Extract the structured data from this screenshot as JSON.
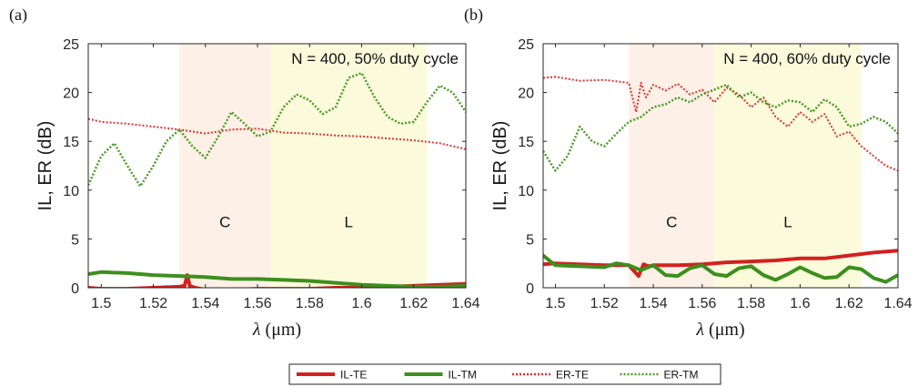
{
  "chart_data": [
    {
      "panel_label": "(a)",
      "type": "line",
      "annotation": "N = 400, 50% duty cycle",
      "xlabel_var": "λ",
      "xlabel_unit": "(μm)",
      "ylabel": "IL, ER (dB)",
      "xlim": [
        1.495,
        1.64
      ],
      "ylim": [
        0,
        25
      ],
      "xticks": [
        1.5,
        1.52,
        1.54,
        1.56,
        1.58,
        1.6,
        1.62,
        1.64
      ],
      "yticks": [
        0,
        5,
        10,
        15,
        20,
        25
      ],
      "xtick_labels": [
        "1.5",
        "1.52",
        "1.54",
        "1.56",
        "1.58",
        "1.6",
        "1.62",
        "1.64"
      ],
      "ytick_labels": [
        "0",
        "5",
        "10",
        "15",
        "20",
        "25"
      ],
      "bands": [
        {
          "label": "C",
          "x_start": 1.53,
          "x_end": 1.565,
          "color": "#fdf0e6"
        },
        {
          "label": "L",
          "x_start": 1.565,
          "x_end": 1.625,
          "color": "#fbfbdc"
        }
      ],
      "series": [
        {
          "name": "IL-TE",
          "x": [
            1.495,
            1.5,
            1.51,
            1.52,
            1.53,
            1.532,
            1.533,
            1.534,
            1.536,
            1.54,
            1.55,
            1.56,
            1.57,
            1.58,
            1.59,
            1.6,
            1.61,
            1.62,
            1.63,
            1.64
          ],
          "y": [
            0.0,
            -0.1,
            -0.1,
            0.0,
            0.1,
            0.2,
            1.3,
            0.2,
            0.0,
            -0.2,
            -0.2,
            -0.1,
            -0.1,
            -0.1,
            0.0,
            0.0,
            0.1,
            0.2,
            0.3,
            0.4
          ]
        },
        {
          "name": "IL-TM",
          "x": [
            1.495,
            1.5,
            1.51,
            1.52,
            1.53,
            1.54,
            1.55,
            1.56,
            1.57,
            1.58,
            1.59,
            1.6,
            1.61,
            1.62,
            1.63,
            1.64
          ],
          "y": [
            1.4,
            1.6,
            1.5,
            1.3,
            1.2,
            1.1,
            0.9,
            0.9,
            0.8,
            0.7,
            0.5,
            0.3,
            0.2,
            0.1,
            0.1,
            0.2
          ]
        },
        {
          "name": "ER-TE",
          "x": [
            1.495,
            1.5,
            1.51,
            1.52,
            1.53,
            1.54,
            1.55,
            1.56,
            1.57,
            1.58,
            1.59,
            1.6,
            1.61,
            1.62,
            1.63,
            1.64
          ],
          "y": [
            17.3,
            17.0,
            16.8,
            16.5,
            16.2,
            15.8,
            16.2,
            16.3,
            15.9,
            15.8,
            15.6,
            15.5,
            15.3,
            15.1,
            14.8,
            14.2
          ]
        },
        {
          "name": "ER-TM",
          "x": [
            1.495,
            1.5,
            1.505,
            1.51,
            1.515,
            1.52,
            1.525,
            1.53,
            1.535,
            1.54,
            1.545,
            1.55,
            1.555,
            1.56,
            1.565,
            1.57,
            1.575,
            1.58,
            1.585,
            1.59,
            1.595,
            1.6,
            1.605,
            1.61,
            1.615,
            1.62,
            1.625,
            1.63,
            1.635,
            1.64
          ],
          "y": [
            10.5,
            13.5,
            14.8,
            12.5,
            10.4,
            12.5,
            15.0,
            16.2,
            14.5,
            13.3,
            15.5,
            18.0,
            16.8,
            15.5,
            16.0,
            18.5,
            19.8,
            19.2,
            17.8,
            18.5,
            21.5,
            22.0,
            19.5,
            17.5,
            16.8,
            17.0,
            19.0,
            20.7,
            20.0,
            18.0
          ]
        }
      ]
    },
    {
      "panel_label": "(b)",
      "type": "line",
      "annotation": "N = 400, 60% duty cycle",
      "xlabel_var": "λ",
      "xlabel_unit": "(μm)",
      "ylabel": "IL, ER (dB)",
      "xlim": [
        1.495,
        1.64
      ],
      "ylim": [
        0,
        25
      ],
      "xticks": [
        1.5,
        1.52,
        1.54,
        1.56,
        1.58,
        1.6,
        1.62,
        1.64
      ],
      "yticks": [
        0,
        5,
        10,
        15,
        20,
        25
      ],
      "xtick_labels": [
        "1.5",
        "1.52",
        "1.54",
        "1.56",
        "1.58",
        "1.6",
        "1.62",
        "1.64"
      ],
      "ytick_labels": [
        "0",
        "5",
        "10",
        "15",
        "20",
        "25"
      ],
      "bands": [
        {
          "label": "C",
          "x_start": 1.53,
          "x_end": 1.565,
          "color": "#fdf0e6"
        },
        {
          "label": "L",
          "x_start": 1.565,
          "x_end": 1.625,
          "color": "#fbfbdc"
        }
      ],
      "series": [
        {
          "name": "IL-TE",
          "x": [
            1.495,
            1.5,
            1.51,
            1.52,
            1.53,
            1.534,
            1.536,
            1.538,
            1.54,
            1.55,
            1.56,
            1.57,
            1.58,
            1.59,
            1.6,
            1.61,
            1.62,
            1.63,
            1.64
          ],
          "y": [
            2.4,
            2.5,
            2.4,
            2.3,
            2.3,
            1.2,
            2.4,
            2.2,
            2.3,
            2.3,
            2.4,
            2.6,
            2.7,
            2.8,
            3.0,
            3.0,
            3.3,
            3.6,
            3.8
          ]
        },
        {
          "name": "IL-TM",
          "x": [
            1.495,
            1.5,
            1.51,
            1.52,
            1.525,
            1.53,
            1.535,
            1.54,
            1.545,
            1.55,
            1.555,
            1.56,
            1.565,
            1.57,
            1.575,
            1.58,
            1.585,
            1.59,
            1.595,
            1.6,
            1.605,
            1.61,
            1.615,
            1.62,
            1.625,
            1.63,
            1.635,
            1.64
          ],
          "y": [
            3.3,
            2.3,
            2.2,
            2.1,
            2.5,
            2.3,
            1.8,
            2.3,
            1.3,
            1.2,
            2.0,
            2.3,
            1.4,
            1.2,
            2.0,
            2.2,
            1.3,
            0.8,
            1.4,
            2.1,
            1.5,
            1.0,
            1.1,
            2.1,
            1.9,
            1.0,
            0.6,
            1.3
          ]
        },
        {
          "name": "ER-TE",
          "x": [
            1.495,
            1.5,
            1.51,
            1.52,
            1.53,
            1.533,
            1.535,
            1.537,
            1.54,
            1.545,
            1.55,
            1.555,
            1.56,
            1.565,
            1.57,
            1.575,
            1.58,
            1.585,
            1.59,
            1.595,
            1.6,
            1.605,
            1.61,
            1.615,
            1.62,
            1.625,
            1.63,
            1.635,
            1.64
          ],
          "y": [
            21.5,
            21.6,
            21.2,
            21.3,
            21.0,
            18.0,
            21.0,
            19.5,
            20.8,
            20.2,
            20.9,
            19.8,
            20.3,
            19.0,
            20.5,
            19.8,
            18.5,
            19.5,
            17.5,
            16.5,
            18.0,
            17.0,
            17.8,
            15.5,
            16.0,
            14.5,
            13.5,
            12.5,
            12.0
          ]
        },
        {
          "name": "ER-TM",
          "x": [
            1.495,
            1.5,
            1.505,
            1.51,
            1.515,
            1.52,
            1.525,
            1.53,
            1.535,
            1.54,
            1.545,
            1.55,
            1.555,
            1.56,
            1.565,
            1.57,
            1.575,
            1.58,
            1.585,
            1.59,
            1.595,
            1.6,
            1.605,
            1.61,
            1.615,
            1.62,
            1.625,
            1.63,
            1.635,
            1.64
          ],
          "y": [
            14.0,
            12.0,
            13.5,
            16.5,
            15.0,
            14.5,
            15.8,
            17.0,
            17.5,
            18.5,
            18.8,
            19.5,
            19.0,
            19.8,
            20.3,
            20.8,
            19.5,
            20.0,
            19.0,
            18.5,
            19.2,
            19.0,
            18.0,
            19.3,
            18.5,
            16.5,
            16.8,
            17.5,
            17.0,
            15.8
          ]
        }
      ]
    }
  ],
  "legend": [
    {
      "label": "IL-TE",
      "color": "#d42020",
      "style": "solid"
    },
    {
      "label": "IL-TM",
      "color": "#3d8f1e",
      "style": "solid"
    },
    {
      "label": "ER-TE",
      "color": "#e53030",
      "style": "dotted"
    },
    {
      "label": "ER-TM",
      "color": "#4a9a25",
      "style": "dotted"
    }
  ],
  "series_styles": {
    "IL-TE": {
      "color": "#d42020",
      "dash": "none",
      "width": 4
    },
    "IL-TM": {
      "color": "#3d8f1e",
      "dash": "none",
      "width": 4
    },
    "ER-TE": {
      "color": "#e53030",
      "dash": "2,2",
      "width": 2
    },
    "ER-TM": {
      "color": "#4a9a25",
      "dash": "2,2",
      "width": 2.5
    }
  }
}
